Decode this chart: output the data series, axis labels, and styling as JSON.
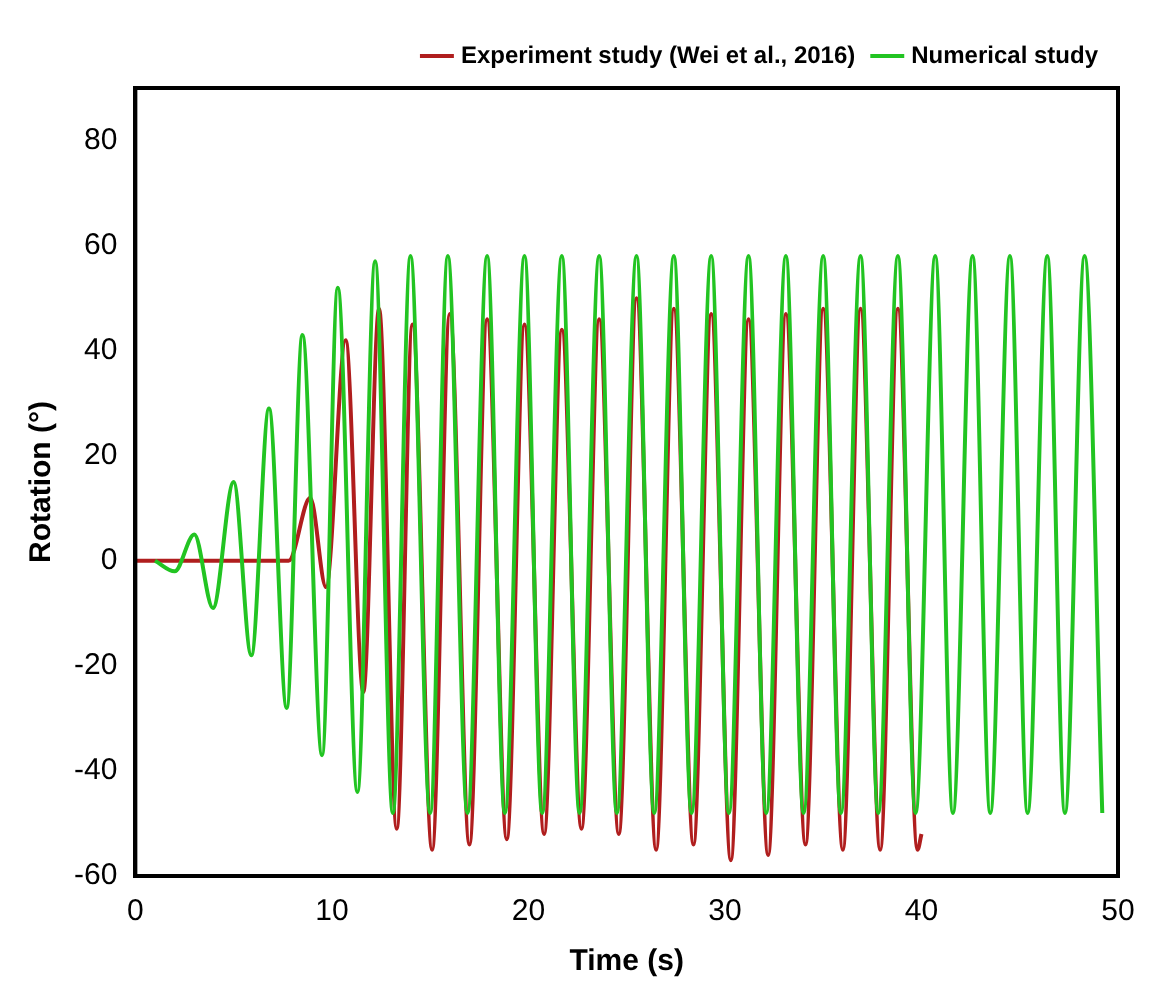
{
  "chart_data": {
    "type": "line",
    "xlabel": "Time (s)",
    "ylabel": "Rotation (°)",
    "xlim": [
      0,
      50
    ],
    "xticks": [
      0,
      10,
      20,
      30,
      40,
      50
    ],
    "ylim": [
      -60,
      90
    ],
    "yticks": [
      -60,
      -40,
      -20,
      0,
      20,
      40,
      60,
      80
    ],
    "grid": false,
    "legend": "top",
    "marker": "none",
    "line_style": "solid",
    "series": [
      {
        "name": "Experiment study (Wei et al., 2016)",
        "color": "#b01e1e",
        "x": [
          0,
          7.8,
          8.9,
          9.7,
          10.7,
          11.6,
          12.4,
          13.3,
          14.1,
          15.1,
          16.0,
          17.0,
          17.9,
          18.9,
          19.8,
          20.8,
          21.7,
          22.7,
          23.6,
          24.6,
          25.5,
          26.5,
          27.4,
          28.4,
          29.3,
          30.3,
          31.2,
          32.2,
          33.1,
          34.1,
          35.0,
          36.0,
          36.9,
          37.9,
          38.8,
          39.8,
          40.0
        ],
        "values": [
          0,
          0,
          12,
          -5,
          42,
          -25,
          48,
          -51,
          45,
          -55,
          47,
          -54,
          46,
          -53,
          45,
          -52,
          44,
          -51,
          46,
          -52,
          50,
          -55,
          48,
          -54,
          47,
          -57,
          46,
          -56,
          47,
          -54,
          48,
          -55,
          48,
          -55,
          48,
          -55,
          -52
        ]
      },
      {
        "name": "Numerical study",
        "color": "#22c422",
        "x": [
          1.0,
          2.0,
          3.0,
          3.95,
          5.0,
          5.9,
          6.8,
          7.7,
          8.5,
          9.5,
          10.3,
          11.3,
          12.2,
          13.1,
          14.0,
          15.0,
          15.9,
          16.9,
          17.9,
          18.8,
          19.8,
          20.7,
          21.7,
          22.6,
          23.6,
          24.5,
          25.5,
          26.4,
          27.4,
          28.3,
          29.3,
          30.2,
          31.2,
          32.1,
          33.1,
          34.0,
          35.0,
          35.9,
          36.9,
          37.8,
          38.8,
          39.7,
          40.7,
          41.6,
          42.6,
          43.5,
          44.5,
          45.4,
          46.4,
          47.3,
          48.3,
          49.2
        ],
        "values": [
          0,
          -2,
          5,
          -9,
          15,
          -18,
          29,
          -28,
          43,
          -37,
          52,
          -44,
          57,
          -48,
          58,
          -48,
          58,
          -48,
          58,
          -48,
          58,
          -48,
          58,
          -48,
          58,
          -48,
          58,
          -48,
          58,
          -48,
          58,
          -48,
          58,
          -48,
          58,
          -48,
          58,
          -48,
          58,
          -48,
          58,
          -48,
          58,
          -48,
          58,
          -48,
          58,
          -48,
          58,
          -48,
          58,
          -48
        ]
      }
    ]
  }
}
